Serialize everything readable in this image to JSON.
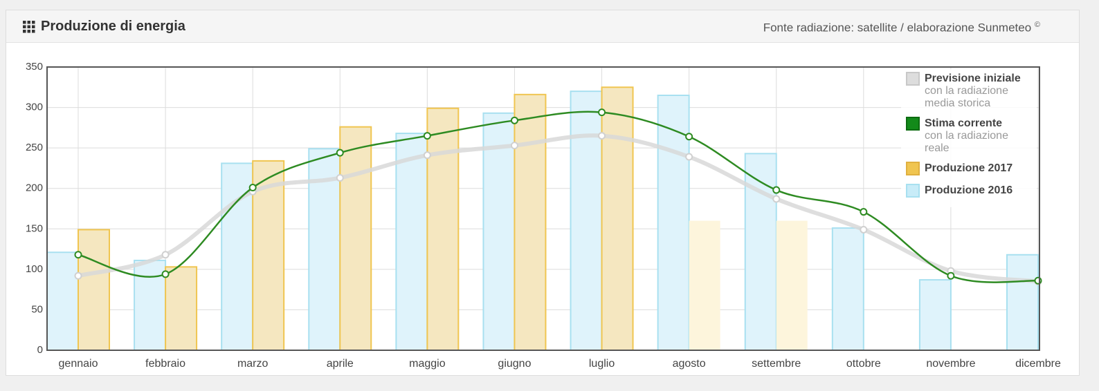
{
  "header": {
    "title": "Produzione di energia",
    "source": "Fonte radiazione: satellite / elaborazione Sunmeteo",
    "source_mark": "©"
  },
  "chart_data": {
    "type": "bar",
    "categories": [
      "gennaio",
      "febbraio",
      "marzo",
      "aprile",
      "maggio",
      "giugno",
      "luglio",
      "agosto",
      "settembre",
      "ottobre",
      "novembre",
      "dicembre"
    ],
    "ylim": [
      0,
      350
    ],
    "yticks": [
      0,
      50,
      100,
      150,
      200,
      250,
      300,
      350
    ],
    "grid": true,
    "legend": "top-right",
    "series": [
      {
        "name": "Produzione 2016",
        "type": "bar",
        "color": "#a8e0f0",
        "values": [
          121,
          111,
          231,
          249,
          268,
          293,
          320,
          315,
          243,
          151,
          87,
          118
        ]
      },
      {
        "name": "Produzione 2017",
        "type": "bar",
        "color": "#f0c550",
        "values": [
          149,
          103,
          234,
          276,
          299,
          316,
          325,
          null,
          null,
          null,
          null,
          null
        ]
      },
      {
        "type": "bar",
        "color": "#fdf5dc",
        "values": [
          null,
          null,
          null,
          null,
          null,
          null,
          null,
          160,
          160,
          null,
          null,
          null
        ]
      },
      {
        "name": "Previsione iniziale",
        "description": [
          "con la radiazione",
          "media storica"
        ],
        "type": "line",
        "color": "#d8d8d8",
        "values": [
          92,
          118,
          196,
          213,
          241,
          253,
          265,
          239,
          187,
          149,
          98,
          85
        ]
      },
      {
        "name": "Stima corrente",
        "description": [
          "con la radiazione",
          "reale"
        ],
        "type": "line",
        "color": "#2e8b22",
        "values": [
          118,
          94,
          201,
          244,
          265,
          284,
          294,
          264,
          198,
          171,
          92,
          86
        ]
      }
    ]
  }
}
